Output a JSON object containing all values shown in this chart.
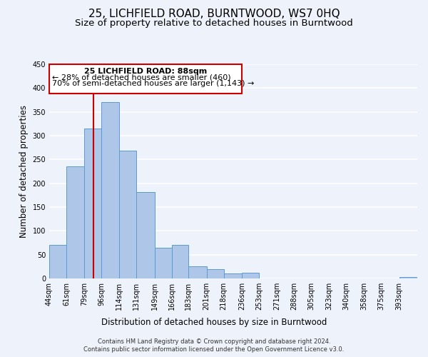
{
  "title": "25, LICHFIELD ROAD, BURNTWOOD, WS7 0HQ",
  "subtitle": "Size of property relative to detached houses in Burntwood",
  "xlabel": "Distribution of detached houses by size in Burntwood",
  "ylabel": "Number of detached properties",
  "footer_line1": "Contains HM Land Registry data © Crown copyright and database right 2024.",
  "footer_line2": "Contains public sector information licensed under the Open Government Licence v3.0.",
  "bin_labels": [
    "44sqm",
    "61sqm",
    "79sqm",
    "96sqm",
    "114sqm",
    "131sqm",
    "149sqm",
    "166sqm",
    "183sqm",
    "201sqm",
    "218sqm",
    "236sqm",
    "253sqm",
    "271sqm",
    "288sqm",
    "305sqm",
    "323sqm",
    "340sqm",
    "358sqm",
    "375sqm",
    "393sqm"
  ],
  "bin_edges": [
    44,
    61,
    79,
    96,
    114,
    131,
    149,
    166,
    183,
    201,
    218,
    236,
    253,
    271,
    288,
    305,
    323,
    340,
    358,
    375,
    393
  ],
  "bar_heights": [
    70,
    235,
    315,
    370,
    268,
    182,
    65,
    70,
    25,
    20,
    10,
    12,
    0,
    0,
    0,
    0,
    0,
    0,
    0,
    0,
    3
  ],
  "bar_color": "#aec6e8",
  "bar_edge_color": "#5b9bd5",
  "vline_x": 88,
  "vline_color": "#cc0000",
  "annotation_text_line1": "25 LICHFIELD ROAD: 88sqm",
  "annotation_text_line2": "← 28% of detached houses are smaller (460)",
  "annotation_text_line3": "70% of semi-detached houses are larger (1,143) →",
  "annotation_box_color": "#cc0000",
  "ylim": [
    0,
    450
  ],
  "yticks": [
    0,
    50,
    100,
    150,
    200,
    250,
    300,
    350,
    400,
    450
  ],
  "bg_color": "#eef2fa",
  "grid_color": "#ffffff",
  "title_fontsize": 11,
  "subtitle_fontsize": 9.5,
  "axis_label_fontsize": 8.5,
  "tick_fontsize": 7,
  "annotation_fontsize": 8,
  "footer_fontsize": 6
}
